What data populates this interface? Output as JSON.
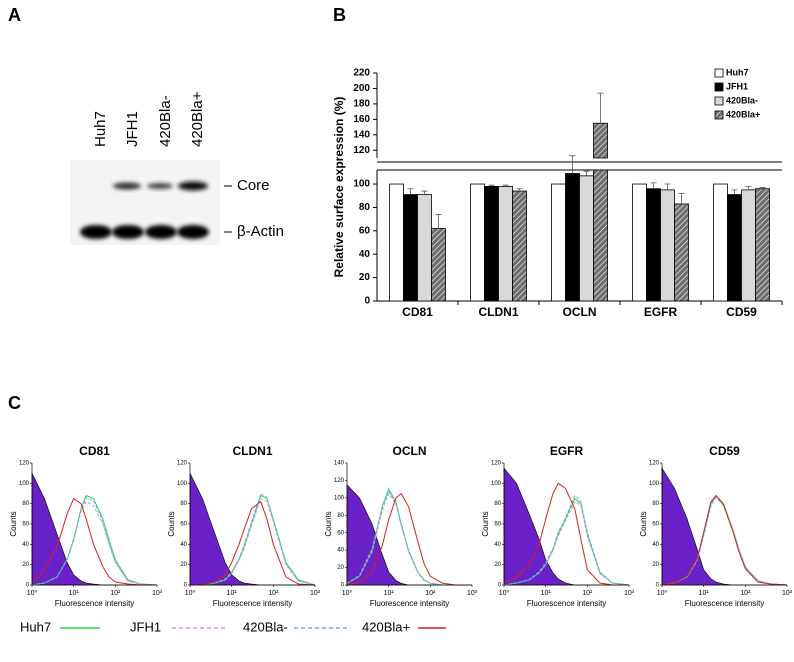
{
  "panel_labels": [
    "A",
    "B",
    "C"
  ],
  "blot": {
    "lanes": [
      "Huh7",
      "JFH1",
      "420Bla-",
      "420Bla+"
    ],
    "bands": [
      "Core",
      "β-Actin"
    ]
  },
  "chart_data": [
    {
      "type": "bar",
      "ylabel": "Relative surface expression (%)",
      "categories": [
        "CD81",
        "CLDN1",
        "OCLN",
        "EGFR",
        "CD59"
      ],
      "series": [
        {
          "name": "Huh7",
          "color": "#ffffff",
          "values": [
            100,
            100,
            100,
            100,
            100
          ]
        },
        {
          "name": "JFH1",
          "color": "#000000",
          "values": [
            91,
            98,
            109,
            96,
            91
          ],
          "errors": [
            5,
            1,
            4,
            5,
            4
          ]
        },
        {
          "name": "420Bla-",
          "color": "#d9d9d9",
          "values": [
            91,
            98,
            107,
            95,
            95
          ],
          "errors": [
            3,
            1,
            4,
            5,
            3
          ]
        },
        {
          "name": "420Bla+",
          "color": "#6e6e6e",
          "hatch": true,
          "values": [
            62,
            94,
            155,
            83,
            96
          ],
          "errors": [
            12,
            2,
            39,
            9,
            1
          ]
        }
      ],
      "ylim_lower": [
        0,
        112
      ],
      "ylim_upper": [
        110,
        220
      ],
      "yticks": [
        0,
        20,
        40,
        60,
        80,
        100,
        120,
        140,
        160,
        180,
        200,
        220
      ],
      "legend": "upper right"
    },
    {
      "type": "line",
      "xscale": "log",
      "xlabel": "Fluorescence intensity",
      "ylabel": "Counts",
      "x": [
        1,
        2,
        4,
        7,
        10,
        15,
        20,
        30,
        50,
        70,
        100,
        200,
        400,
        1000
      ],
      "xlim": [
        1,
        1000
      ],
      "xticks": [
        {
          "value": 1,
          "label": "10⁰"
        },
        {
          "value": 10,
          "label": "10¹"
        },
        {
          "value": 100,
          "label": "10²"
        },
        {
          "value": 1000,
          "label": "10³"
        }
      ],
      "legend": [
        {
          "name": "Huh7",
          "color": "#2bd94a"
        },
        {
          "name": "JFH1",
          "color": "#e58be5",
          "dash": true
        },
        {
          "name": "420Bla-",
          "color": "#5ab4e8",
          "dash": true
        },
        {
          "name": "420Bla+",
          "color": "#d42020"
        }
      ],
      "panels": [
        {
          "title": "CD81",
          "ylim": [
            0,
            120
          ],
          "yticks": [
            0,
            20,
            40,
            60,
            80,
            100,
            120
          ],
          "series": [
            {
              "color": "#6a22c8",
              "fill": true,
              "values": [
                110,
                85,
                50,
                22,
                10,
                4,
                2,
                1,
                0,
                0,
                0,
                0,
                0,
                0
              ]
            },
            {
              "color": "#2bd94a",
              "values": [
                0,
                2,
                8,
                25,
                45,
                75,
                88,
                85,
                65,
                45,
                25,
                5,
                1,
                0
              ]
            },
            {
              "color": "#e58be5",
              "dash": true,
              "values": [
                0,
                2,
                8,
                25,
                44,
                72,
                82,
                78,
                60,
                40,
                22,
                4,
                1,
                0
              ]
            },
            {
              "color": "#5ab4e8",
              "dash": true,
              "values": [
                0,
                2,
                8,
                26,
                46,
                74,
                86,
                83,
                62,
                42,
                23,
                4,
                1,
                0
              ]
            },
            {
              "color": "#d42020",
              "values": [
                2,
                15,
                38,
                70,
                85,
                80,
                65,
                40,
                18,
                8,
                3,
                1,
                0,
                0
              ]
            }
          ]
        },
        {
          "title": "CLDN1",
          "ylim": [
            0,
            120
          ],
          "yticks": [
            0,
            20,
            40,
            60,
            80,
            100,
            120
          ],
          "series": [
            {
              "color": "#6a22c8",
              "fill": true,
              "values": [
                110,
                85,
                50,
                22,
                10,
                4,
                2,
                1,
                0,
                0,
                0,
                0,
                0,
                0
              ]
            },
            {
              "color": "#2bd94a",
              "values": [
                0,
                0,
                2,
                5,
                12,
                25,
                38,
                60,
                88,
                85,
                65,
                22,
                5,
                0
              ]
            },
            {
              "color": "#e58be5",
              "dash": true,
              "values": [
                0,
                0,
                2,
                5,
                11,
                24,
                36,
                58,
                85,
                82,
                62,
                20,
                4,
                0
              ]
            },
            {
              "color": "#5ab4e8",
              "dash": true,
              "values": [
                0,
                0,
                2,
                6,
                13,
                26,
                40,
                62,
                90,
                86,
                64,
                21,
                4,
                0
              ]
            },
            {
              "color": "#d42020",
              "values": [
                0,
                0,
                3,
                10,
                22,
                40,
                55,
                75,
                82,
                65,
                40,
                8,
                1,
                0
              ]
            }
          ]
        },
        {
          "title": "OCLN",
          "ylim": [
            0,
            140
          ],
          "yticks": [
            0,
            20,
            40,
            60,
            80,
            100,
            120,
            140
          ],
          "series": [
            {
              "color": "#6a22c8",
              "fill": true,
              "values": [
                115,
                100,
                70,
                35,
                15,
                5,
                2,
                0,
                0,
                0,
                0,
                0,
                0,
                0
              ]
            },
            {
              "color": "#2bd94a",
              "values": [
                2,
                10,
                40,
                90,
                110,
                95,
                70,
                40,
                15,
                6,
                2,
                0,
                0,
                0
              ]
            },
            {
              "color": "#e58be5",
              "dash": true,
              "values": [
                2,
                10,
                38,
                85,
                105,
                92,
                68,
                38,
                14,
                5,
                2,
                0,
                0,
                0
              ]
            },
            {
              "color": "#5ab4e8",
              "dash": true,
              "values": [
                2,
                11,
                42,
                88,
                108,
                94,
                70,
                40,
                15,
                6,
                2,
                0,
                0,
                0
              ]
            },
            {
              "color": "#d42020",
              "values": [
                0,
                3,
                15,
                45,
                75,
                100,
                105,
                90,
                50,
                25,
                10,
                2,
                0,
                0
              ]
            }
          ]
        },
        {
          "title": "EGFR",
          "ylim": [
            0,
            120
          ],
          "yticks": [
            0,
            20,
            40,
            60,
            80,
            100,
            120
          ],
          "series": [
            {
              "color": "#6a22c8",
              "fill": true,
              "values": [
                115,
                100,
                70,
                45,
                25,
                12,
                6,
                2,
                0,
                0,
                0,
                0,
                0,
                0
              ]
            },
            {
              "color": "#2bd94a",
              "values": [
                0,
                2,
                5,
                12,
                20,
                35,
                50,
                65,
                85,
                80,
                50,
                12,
                2,
                0
              ]
            },
            {
              "color": "#e58be5",
              "dash": true,
              "values": [
                0,
                2,
                5,
                12,
                20,
                34,
                48,
                63,
                82,
                78,
                48,
                11,
                2,
                0
              ]
            },
            {
              "color": "#5ab4e8",
              "dash": true,
              "values": [
                0,
                2,
                5,
                13,
                22,
                36,
                52,
                66,
                88,
                82,
                52,
                13,
                2,
                0
              ]
            },
            {
              "color": "#d42020",
              "values": [
                2,
                8,
                20,
                40,
                65,
                90,
                100,
                95,
                75,
                45,
                15,
                2,
                0,
                0
              ]
            }
          ]
        },
        {
          "title": "CD59",
          "ylim": [
            0,
            120
          ],
          "yticks": [
            0,
            20,
            40,
            60,
            80,
            100,
            120
          ],
          "series": [
            {
              "color": "#6a22c8",
              "fill": true,
              "values": [
                115,
                95,
                65,
                35,
                15,
                6,
                3,
                1,
                0,
                0,
                0,
                0,
                0,
                0
              ]
            },
            {
              "color": "#2bd94a",
              "values": [
                0,
                2,
                8,
                25,
                50,
                80,
                88,
                80,
                55,
                35,
                18,
                4,
                1,
                0
              ]
            },
            {
              "color": "#e58be5",
              "dash": true,
              "values": [
                0,
                2,
                8,
                24,
                48,
                78,
                86,
                78,
                54,
                34,
                17,
                4,
                1,
                0
              ]
            },
            {
              "color": "#5ab4e8",
              "dash": true,
              "values": [
                0,
                2,
                8,
                25,
                50,
                79,
                87,
                79,
                55,
                35,
                18,
                4,
                1,
                0
              ]
            },
            {
              "color": "#d42020",
              "values": [
                0,
                2,
                9,
                26,
                52,
                82,
                88,
                79,
                53,
                33,
                16,
                3,
                1,
                0
              ]
            }
          ]
        }
      ]
    }
  ]
}
